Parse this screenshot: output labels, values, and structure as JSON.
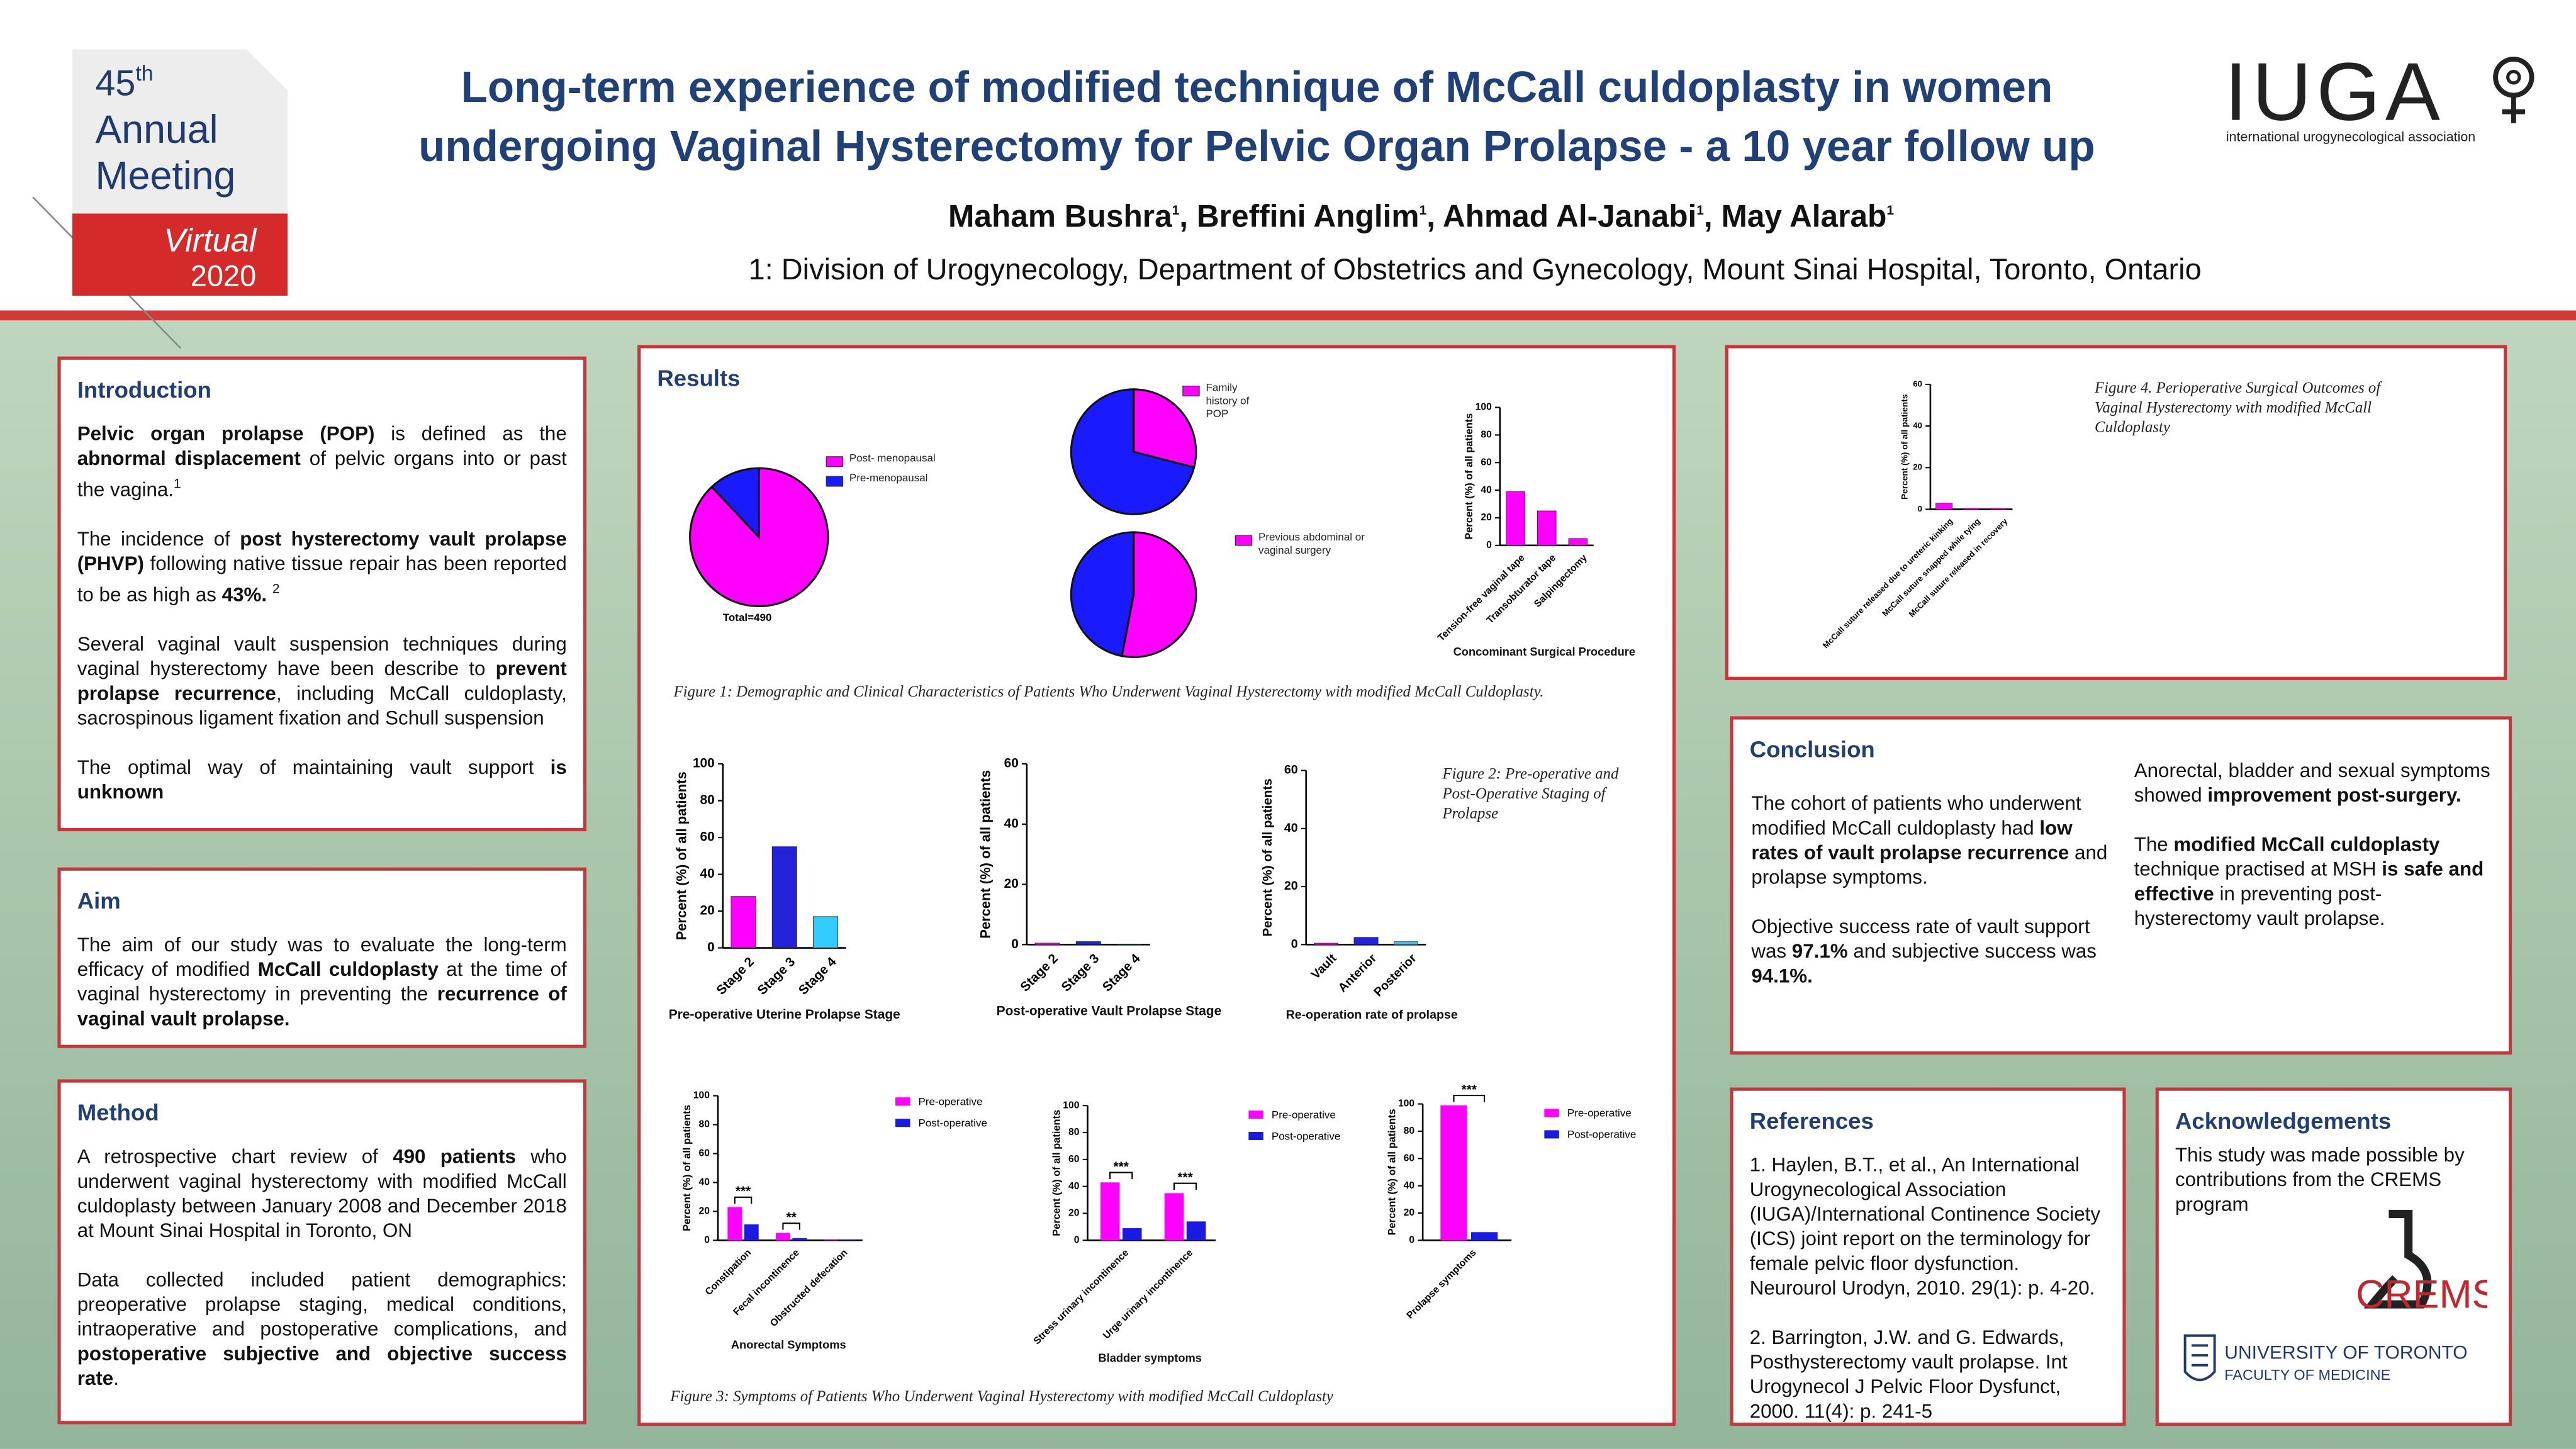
{
  "header": {
    "meeting": {
      "number": "45",
      "suffix": "th",
      "line2": "Annual",
      "line3": "Meeting",
      "virtual": "Virtual",
      "year": "2020"
    },
    "title_lines": [
      "Long-term experience of modified technique of McCall culdoplasty in women",
      "undergoing Vaginal Hysterectomy for Pelvic Organ Prolapse - a 10 year follow up"
    ],
    "authors": [
      {
        "t": "Maham Bushra"
      },
      {
        "t": "1",
        "sup": true
      },
      {
        "t": ", Breffini Anglim"
      },
      {
        "t": "1",
        "sup": true
      },
      {
        "t": ", Ahmad Al-Janabi"
      },
      {
        "t": "1",
        "sup": true
      },
      {
        "t": ", May Alarab"
      },
      {
        "t": "1",
        "sup": true
      }
    ],
    "affiliation": "1: Division of Urogynecology, Department of Obstetrics and Gynecology,  Mount Sinai Hospital, Toronto, Ontario",
    "logo": {
      "name": "IUGA",
      "tagline": "international urogynecological association"
    }
  },
  "introduction": {
    "heading": "Introduction",
    "paragraphs": [
      [
        {
          "t": "Pelvic organ prolapse (POP)",
          "bold": true
        },
        {
          "t": " is defined as the "
        },
        {
          "t": "abnormal displacement",
          "bold": true
        },
        {
          "t": " of pelvic organs into or past the vagina."
        },
        {
          "t": "1",
          "sup": true
        }
      ],
      [
        {
          "t": "The incidence of "
        },
        {
          "t": "post hysterectomy vault prolapse (PHVP)",
          "bold": true
        },
        {
          "t": " following native tissue repair has been reported to be as high as "
        },
        {
          "t": "43%.",
          "bold": true
        },
        {
          "t": " "
        },
        {
          "t": "2",
          "sup": true
        }
      ],
      [
        {
          "t": "Several vaginal vault suspension techniques during vaginal hysterectomy have been describe to "
        },
        {
          "t": "prevent prolapse recurrence",
          "bold": true
        },
        {
          "t": ", including McCall culdoplasty, sacrospinous ligament fixation and  Schull suspension"
        }
      ],
      [
        {
          "t": "The optimal way of maintaining vault support "
        },
        {
          "t": "is unknown",
          "bold": true
        }
      ]
    ]
  },
  "aim": {
    "heading": "Aim",
    "paragraphs": [
      [
        {
          "t": "The aim of our study was to evaluate the long-term efficacy of modified "
        },
        {
          "t": "McCall culdoplasty",
          "bold": true
        },
        {
          "t": " at the time of vaginal hysterectomy in preventing the "
        },
        {
          "t": "recurrence of vaginal vault prolapse.",
          "bold": true
        }
      ]
    ]
  },
  "method": {
    "heading": "Method",
    "paragraphs": [
      [
        {
          "t": "A retrospective chart review of "
        },
        {
          "t": "490 patients",
          "bold": true
        },
        {
          "t": " who underwent vaginal hysterectomy with modified McCall culdoplasty between January 2008 and December 2018 at Mount Sinai Hospital in Toronto, ON"
        }
      ],
      [
        {
          "t": "Data collected included patient demographics: preoperative prolapse staging, medical conditions, intraoperative and postoperative complications, and "
        },
        {
          "t": "postoperative subjective and objective success rate",
          "bold": true
        },
        {
          "t": "."
        }
      ]
    ]
  },
  "results": {
    "heading": "Results"
  },
  "conclusion": {
    "heading": "Conclusion",
    "columns": [
      [
        [
          {
            "t": "The cohort of patients who underwent modified McCall culdoplasty had "
          },
          {
            "t": "low rates of vault prolapse recurrence",
            "bold": true
          },
          {
            "t": " and prolapse symptoms."
          }
        ],
        [
          {
            "t": "Objective success rate of vault support was "
          },
          {
            "t": "97.1%",
            "bold": true
          },
          {
            "t": "  and subjective success was "
          },
          {
            "t": "94.1%.",
            "bold": true
          }
        ]
      ],
      [
        [
          {
            "t": "Anorectal, bladder and sexual symptoms showed "
          },
          {
            "t": "improvement post-surgery.",
            "bold": true
          }
        ],
        [
          {
            "t": "The "
          },
          {
            "t": "modified McCall culdoplasty",
            "bold": true
          },
          {
            "t": " technique practised at MSH "
          },
          {
            "t": "is safe and effective",
            "bold": true
          },
          {
            "t": " in preventing post-hysterectomy vault prolapse."
          }
        ]
      ]
    ]
  },
  "references": {
    "heading": "References",
    "items": [
      "1. Haylen, B.T., et al., An International Urogynecological Association (IUGA)/International Continence Society (ICS) joint report on the terminology for female pelvic floor dysfunction. Neurourol Urodyn, 2010. 29(1): p. 4-20.",
      "2. Barrington, J.W. and G. Edwards, Posthysterectomy vault prolapse. Int Urogynecol J Pelvic Floor Dysfunct, 2000. 11(4): p. 241-5"
    ]
  },
  "acknowledgements": {
    "heading": "Acknowledgements",
    "text": "This study was made possible by contributions from the CREMS program",
    "crems": "CREMS",
    "university": "UNIVERSITY OF TORONTO",
    "faculty": "FACULTY OF MEDICINE"
  },
  "figure_captions": [
    "Figure 1: Demographic and Clinical Characteristics of Patients Who Underwent Vaginal Hysterectomy with modified McCall Culdoplasty.",
    "Figure 2: Pre-operative and Post-Operative Staging of Prolapse",
    "Figure 3: Symptoms of Patients Who Underwent Vaginal Hysterectomy with modified McCall Culdoplasty",
    "Figure 4. Perioperative Surgical Outcomes of Vaginal Hysterectomy with modified McCall Culdoplasty"
  ],
  "chart_data": [
    {
      "type": "pie",
      "labels": [
        "Post- menopausal",
        "Pre-menopausal"
      ],
      "values": [
        88,
        12
      ],
      "colors": [
        "#ff00ff",
        "#1a1aff"
      ],
      "note": "Total=490"
    },
    {
      "type": "pie",
      "labels": [
        "Family history of POP",
        null
      ],
      "values": [
        29,
        71
      ],
      "colors": [
        "#ff00ff",
        "#1a1aff"
      ]
    },
    {
      "type": "pie",
      "labels": [
        "Previous abdominal or vaginal surgery",
        null
      ],
      "values": [
        53,
        47
      ],
      "colors": [
        "#ff00ff",
        "#1a1aff"
      ]
    },
    {
      "type": "bar",
      "categories": [
        "Tension-free vaginal tape",
        "Transobturator tape",
        "Salpingectomy"
      ],
      "values": [
        39,
        25,
        5
      ],
      "color": "#ff00ff",
      "ylim": [
        0,
        100
      ],
      "yticks": [
        0,
        20,
        40,
        60,
        80,
        100
      ],
      "ylabel": "Percent (%) of all patients",
      "xlabel": "Concominant Surgical Procedure"
    },
    {
      "type": "bar",
      "categories": [
        "Stage 2",
        "Stage 3",
        "Stage 4"
      ],
      "values": [
        28,
        55,
        17
      ],
      "colors": [
        "#ff00ff",
        "#2222d8",
        "#33ccff"
      ],
      "ylim": [
        0,
        100
      ],
      "yticks": [
        0,
        20,
        40,
        60,
        80,
        100
      ],
      "ylabel": "Percent (%) of all patients",
      "xlabel": "Pre-operative Uterine Prolapse Stage"
    },
    {
      "type": "bar",
      "categories": [
        "Stage 2",
        "Stage 3",
        "Stage 4"
      ],
      "values": [
        0.5,
        1,
        0.2
      ],
      "colors": [
        "#ff00ff",
        "#2222d8",
        "#33ccff"
      ],
      "ylim": [
        0,
        60
      ],
      "yticks": [
        0,
        20,
        40,
        60
      ],
      "ylabel": "Percent (%) of all patients",
      "xlabel": "Post-operative Vault Prolapse Stage"
    },
    {
      "type": "bar",
      "categories": [
        "Vault",
        "Anterior",
        "Posterior"
      ],
      "values": [
        0.5,
        2.5,
        1
      ],
      "colors": [
        "#ff00ff",
        "#2222d8",
        "#33ccff"
      ],
      "ylim": [
        0,
        60
      ],
      "yticks": [
        0,
        20,
        40,
        60
      ],
      "ylabel": "Percent (%) of all patients",
      "xlabel": "Re-operation rate of prolapse"
    },
    {
      "type": "bar",
      "categories": [
        "Constipation",
        "Fecal incontinence",
        "Obstructed defecation"
      ],
      "series": [
        {
          "name": "Pre-operative",
          "color": "#ff00ff",
          "values": [
            23,
            5,
            0.3
          ]
        },
        {
          "name": "Post-operative",
          "color": "#1a1ae0",
          "values": [
            11,
            1.5,
            0.3
          ]
        }
      ],
      "annotations": [
        "***",
        "**",
        null
      ],
      "ylim": [
        0,
        100
      ],
      "yticks": [
        0,
        20,
        40,
        60,
        80,
        100
      ],
      "ylabel": "Percent (%) of all patients",
      "xlabel": "Anorectal Symptoms"
    },
    {
      "type": "bar",
      "categories": [
        "Stress urinary incontinence",
        "Urge urinary incontinence"
      ],
      "series": [
        {
          "name": "Pre-operative",
          "color": "#ff00ff",
          "values": [
            43,
            35
          ]
        },
        {
          "name": "Post-operative",
          "color": "#1a1ae0",
          "values": [
            9,
            14
          ]
        }
      ],
      "annotations": [
        "***",
        "***"
      ],
      "ylim": [
        0,
        100
      ],
      "yticks": [
        0,
        20,
        40,
        60,
        80,
        100
      ],
      "ylabel": "Percent (%) of all patients",
      "xlabel": "Bladder symptoms"
    },
    {
      "type": "bar",
      "categories": [
        "Prolapse symptoms"
      ],
      "series": [
        {
          "name": "Pre-operative",
          "color": "#ff00ff",
          "values": [
            99
          ]
        },
        {
          "name": "Post-operative",
          "color": "#1a1ae0",
          "values": [
            6
          ]
        }
      ],
      "annotations": [
        "***"
      ],
      "ylim": [
        0,
        100
      ],
      "yticks": [
        0,
        20,
        40,
        60,
        80,
        100
      ],
      "ylabel": "Percent (%) of all patients"
    },
    {
      "type": "bar",
      "categories": [
        "McCall suture released due to ureteric kinking",
        "McCall suture snapped while tying",
        "McCall suture released in recovery"
      ],
      "values": [
        3,
        0.5,
        0.5
      ],
      "color": "#ff00ff",
      "ylim": [
        0,
        60
      ],
      "yticks": [
        0,
        20,
        40,
        60
      ],
      "ylabel": "Percent (%) of all patients"
    }
  ]
}
